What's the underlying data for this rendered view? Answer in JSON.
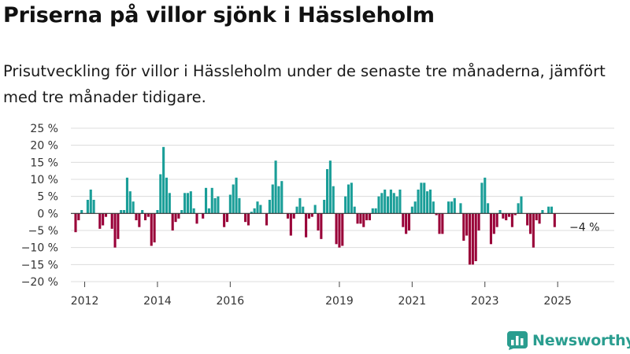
{
  "title": "Priserna på villor sjönk i Hässleholm",
  "subtitle": "Prisutveckling för villor i Hässleholm under de senaste tre månaderna, jämfört med tre månader tidigare.",
  "brand": {
    "name": "Newsworthy",
    "color": "#2a9d8f",
    "icon": "bar-chart-logo-icon"
  },
  "chart_data": {
    "type": "bar",
    "ylim": [
      -20,
      25
    ],
    "yticks": [
      -20,
      -15,
      -10,
      -5,
      0,
      5,
      10,
      15,
      20,
      25
    ],
    "ytick_labels": [
      "−20 %",
      "−15 %",
      "−10 %",
      "−5 %",
      "0 %",
      "5 %",
      "10 %",
      "15 %",
      "20 %",
      "25 %"
    ],
    "x_start": "2011-10",
    "xticks": [
      {
        "month": "2012-01",
        "label": "2012"
      },
      {
        "month": "2014-01",
        "label": "2014"
      },
      {
        "month": "2016-01",
        "label": "2016"
      },
      {
        "month": "2019-01",
        "label": "2019"
      },
      {
        "month": "2021-01",
        "label": "2021"
      },
      {
        "month": "2023-01",
        "label": "2023"
      },
      {
        "month": "2025-01",
        "label": "2025"
      }
    ],
    "grid": true,
    "colors": {
      "positive": "#1a9e98",
      "negative": "#990038",
      "grid": "#dcdcdc",
      "zero_line": "#333333"
    },
    "end_label": "−4 %",
    "values": [
      -5.5,
      -2,
      1,
      0,
      4,
      7,
      4,
      0,
      -4.5,
      -3.5,
      -1,
      0,
      -4.5,
      -10,
      -7.5,
      1,
      1,
      10.5,
      6.5,
      3.5,
      -2,
      -4,
      1,
      -2,
      -1,
      -9.5,
      -8.5,
      1,
      11.5,
      19.5,
      10.5,
      6,
      -5,
      -2.5,
      -1.5,
      1,
      6,
      6,
      6.5,
      1.5,
      -3,
      0,
      -1.5,
      7.5,
      1.5,
      7.5,
      4.5,
      5,
      0,
      -4,
      -2.5,
      5.5,
      8.5,
      10.5,
      4.5,
      0,
      -2.5,
      -3.5,
      0.5,
      1.5,
      3.5,
      2.5,
      0,
      -3.5,
      4,
      8.5,
      15.5,
      8,
      9.5,
      0,
      -1.5,
      -6.5,
      -1.5,
      2,
      4.5,
      2,
      -7,
      -1.5,
      -1,
      2.5,
      -5,
      -7.5,
      4,
      13,
      15.5,
      8,
      -9,
      -10,
      -9.5,
      5,
      8.5,
      9,
      2,
      -3,
      -3,
      -4,
      -2,
      -2,
      1.5,
      1.5,
      5,
      6,
      7,
      5,
      7,
      6,
      5,
      7,
      -4,
      -6,
      -5,
      2,
      3.5,
      7,
      9,
      9,
      6.5,
      7,
      3.5,
      -0.5,
      -6,
      -6,
      0,
      3.5,
      3.5,
      4.5,
      0,
      3,
      -8,
      -6.5,
      -15,
      -15,
      -14,
      -5,
      9,
      10.5,
      3,
      -9,
      -6,
      -4,
      1,
      -1.5,
      -2,
      -1,
      -4,
      -0.5,
      3,
      5,
      0,
      -3.5,
      -6,
      -10,
      -2,
      -3,
      1,
      0,
      2,
      2,
      -4
    ]
  }
}
